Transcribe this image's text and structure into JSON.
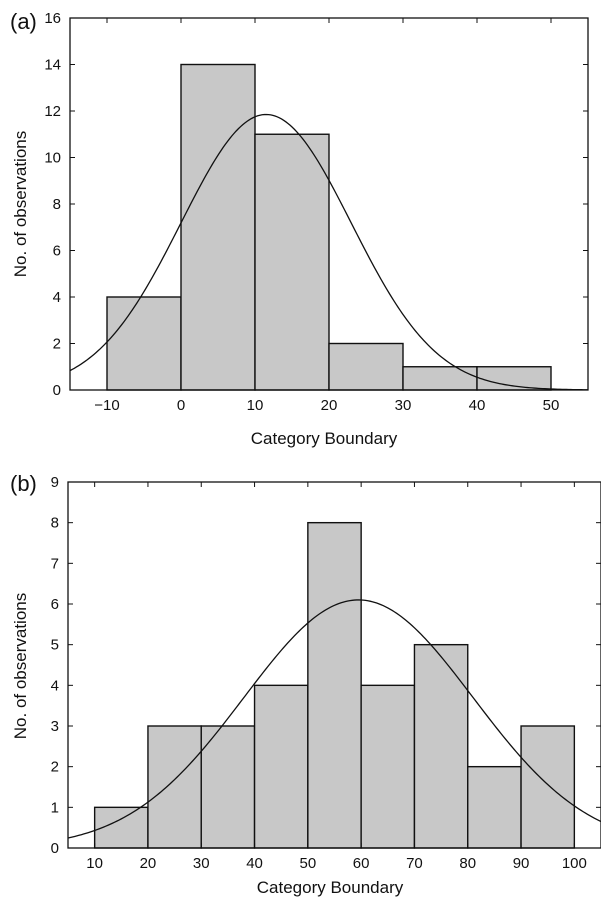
{
  "colors": {
    "bar_fill": "#c8c8c8",
    "stroke": "#111111",
    "background": "#ffffff"
  },
  "chart_data": [
    {
      "panel": "(a)",
      "type": "bar",
      "subtype": "histogram with fitted normal curve",
      "xlabel": "Category Boundary",
      "ylabel": "No. of observations",
      "xlim": [
        -15,
        55
      ],
      "ylim": [
        0,
        16
      ],
      "xticks": [
        -10,
        0,
        10,
        20,
        30,
        40,
        50
      ],
      "xtick_labels": [
        "−10",
        "0",
        "10",
        "20",
        "30",
        "40",
        "50"
      ],
      "yticks": [
        0,
        2,
        4,
        6,
        8,
        10,
        12,
        14,
        16
      ],
      "bin_edges": [
        -10,
        0,
        10,
        20,
        30,
        40,
        50
      ],
      "values": [
        4,
        14,
        11,
        2,
        1,
        1
      ],
      "normal_fit": {
        "peak": 11.85,
        "mean": 11.5,
        "sd": 11.5
      },
      "grid": false
    },
    {
      "panel": "(b)",
      "type": "bar",
      "subtype": "histogram with fitted normal curve",
      "xlabel": "Category Boundary",
      "ylabel": "No. of observations",
      "xlim": [
        5,
        105
      ],
      "ylim": [
        0,
        9
      ],
      "xticks": [
        10,
        20,
        30,
        40,
        50,
        60,
        70,
        80,
        90,
        100
      ],
      "xtick_labels": [
        "10",
        "20",
        "30",
        "40",
        "50",
        "60",
        "70",
        "80",
        "90",
        "100"
      ],
      "yticks": [
        0,
        1,
        2,
        3,
        4,
        5,
        6,
        7,
        8,
        9
      ],
      "bin_edges": [
        10,
        20,
        30,
        40,
        50,
        60,
        70,
        80,
        90,
        100
      ],
      "values": [
        1,
        3,
        3,
        4,
        8,
        4,
        5,
        2,
        3
      ],
      "normal_fit": {
        "peak": 6.1,
        "mean": 59.5,
        "sd": 21.5
      },
      "grid": false
    }
  ]
}
